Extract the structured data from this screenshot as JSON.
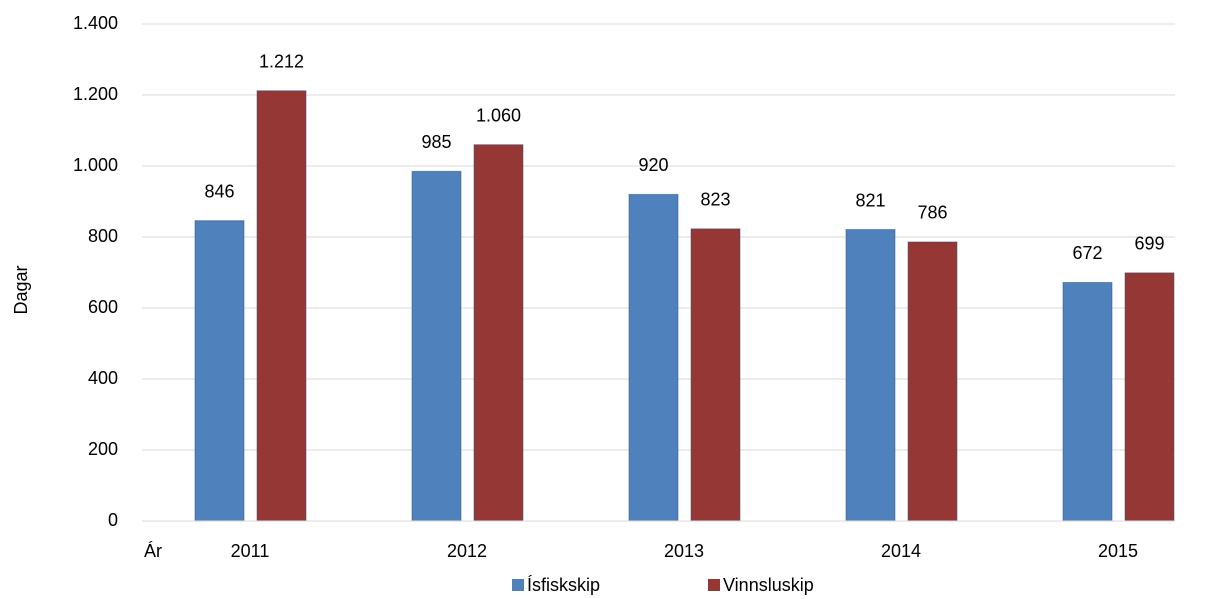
{
  "chart_data": {
    "type": "bar",
    "y_label": "Dagar",
    "x_label": "Ár",
    "categories": [
      "2011",
      "2012",
      "2013",
      "2014",
      "2015"
    ],
    "series": [
      {
        "name": "Ísfiskskip",
        "color": "#4f81bd",
        "values": [
          846,
          985,
          920,
          821,
          672
        ]
      },
      {
        "name": "Vinnsluskip",
        "color": "#953735",
        "values": [
          1212,
          1060,
          823,
          786,
          699
        ],
        "value_labels": [
          "1.212",
          "1.060",
          "823",
          "786",
          "699"
        ]
      }
    ],
    "ylim": [
      0,
      1400
    ],
    "yticks": [
      0,
      200,
      400,
      600,
      800,
      {
        "value": 1000,
        "label": "1.000"
      },
      {
        "value": 1200,
        "label": "1.200"
      },
      {
        "value": 1400,
        "label": "1.400"
      }
    ],
    "grid": true,
    "legend": "bottom"
  }
}
